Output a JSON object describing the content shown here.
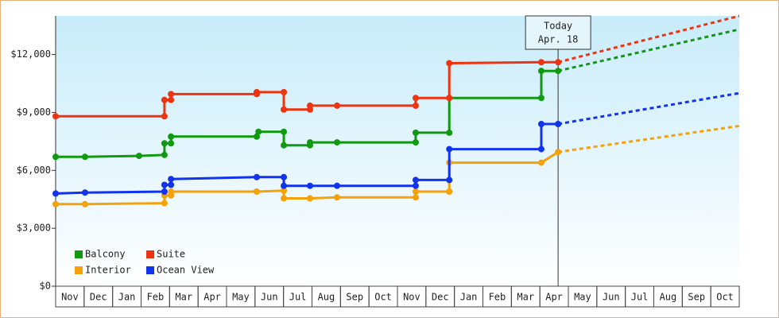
{
  "chart_data": {
    "type": "line",
    "categories": [
      "Nov",
      "Dec",
      "Jan",
      "Feb",
      "Mar",
      "Apr",
      "May",
      "Jun",
      "Jul",
      "Aug",
      "Sep",
      "Oct",
      "Nov",
      "Dec",
      "Jan",
      "Feb",
      "Mar",
      "Apr",
      "May",
      "Jun",
      "Jul",
      "Aug",
      "Sep",
      "Oct"
    ],
    "xlim": [
      0,
      24
    ],
    "ylim": [
      0,
      14000
    ],
    "yticks": [
      {
        "value": 0,
        "label": "$0"
      },
      {
        "value": 3000,
        "label": "$3,000"
      },
      {
        "value": 6000,
        "label": "$6,000"
      },
      {
        "value": 9000,
        "label": "$9,000"
      },
      {
        "value": 12000,
        "label": "$12,000"
      }
    ],
    "legend": "bottom-left",
    "today": {
      "x": 17.64,
      "label": "Today",
      "date": "Apr. 18"
    },
    "series": [
      {
        "name": "Balcony",
        "color": "#119911",
        "x": [
          0,
          1.03,
          2.93,
          3.82,
          3.82,
          4.05,
          4.05,
          7.06,
          7.12,
          8.01,
          8.01,
          8.93,
          8.93,
          9.88,
          12.64,
          12.64,
          13.82,
          13.82,
          17.05,
          17.05,
          17.64
        ],
        "values": [
          6700,
          6700,
          6750,
          6800,
          7400,
          7400,
          7750,
          7750,
          8000,
          8000,
          7300,
          7300,
          7450,
          7450,
          7450,
          7950,
          7950,
          9750,
          9750,
          11150,
          11150
        ],
        "forecast": {
          "x": 24,
          "value": 13300
        }
      },
      {
        "name": "Suite",
        "color": "#ee3311",
        "x": [
          0,
          3.82,
          3.82,
          4.05,
          4.05,
          7.06,
          7.06,
          8.01,
          8.01,
          8.93,
          8.93,
          9.88,
          12.64,
          12.64,
          13.82,
          13.82,
          17.05,
          17.64
        ],
        "values": [
          8800,
          8800,
          9650,
          9650,
          9950,
          9950,
          10050,
          10050,
          9150,
          9150,
          9350,
          9350,
          9350,
          9750,
          9750,
          11550,
          11600,
          11600
        ],
        "forecast": {
          "x": 24,
          "value": 14000
        }
      },
      {
        "name": "Interior",
        "color": "#f5a10a",
        "x": [
          0,
          1.03,
          3.82,
          3.82,
          4.05,
          4.05,
          7.06,
          8.01,
          8.01,
          8.93,
          9.88,
          12.64,
          12.64,
          13.82,
          13.82,
          17.05,
          17.64
        ],
        "values": [
          4250,
          4250,
          4300,
          4700,
          4700,
          4900,
          4900,
          4950,
          4550,
          4550,
          4600,
          4600,
          4900,
          4900,
          6400,
          6400,
          6950
        ],
        "forecast": {
          "x": 24,
          "value": 8300
        }
      },
      {
        "name": "Ocean View",
        "color": "#1133ee",
        "x": [
          0,
          1.03,
          3.82,
          3.82,
          4.05,
          4.05,
          7.06,
          8.01,
          8.01,
          8.93,
          9.88,
          12.64,
          12.64,
          13.82,
          13.82,
          17.05,
          17.05,
          17.64
        ],
        "values": [
          4800,
          4850,
          4900,
          5250,
          5250,
          5550,
          5650,
          5650,
          5200,
          5200,
          5200,
          5200,
          5500,
          5500,
          7100,
          7100,
          8400,
          8400
        ],
        "forecast": {
          "x": 24,
          "value": 10000
        }
      }
    ]
  }
}
